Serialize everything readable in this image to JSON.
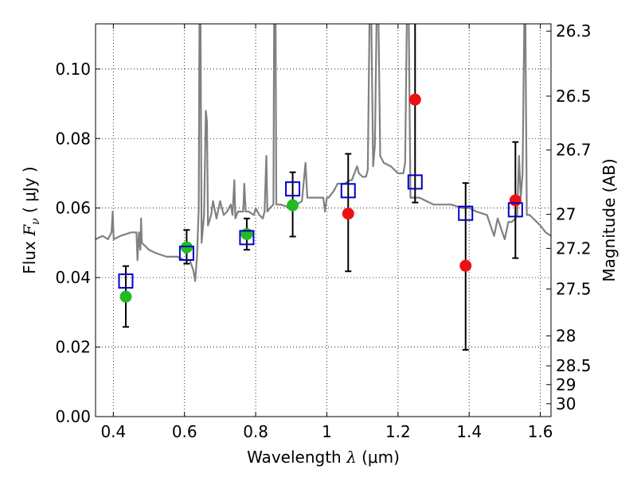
{
  "chart_data": {
    "type": "scatter",
    "xlabel": "Wavelength  λ (μm)",
    "xlabel_parts": {
      "text": "Wavelength  ",
      "symbol": "λ",
      "unit": " (μm)"
    },
    "ylabel": "Flux  Fν  ( μJy )",
    "ylabel_parts": {
      "text": "Flux  ",
      "symbol": "F",
      "subscript": "ν",
      "unit": "  ( μJy )"
    },
    "y2label": "Magnitude (AB)",
    "xlim": [
      0.35,
      1.63
    ],
    "ylim": [
      0.0,
      0.113
    ],
    "grid": true,
    "x_ticks": [
      {
        "value": 0.4,
        "label": "0.4"
      },
      {
        "value": 0.6,
        "label": "0.6"
      },
      {
        "value": 0.8,
        "label": "0.8"
      },
      {
        "value": 1.0,
        "label": "1"
      },
      {
        "value": 1.2,
        "label": "1.2"
      },
      {
        "value": 1.4,
        "label": "1.4"
      },
      {
        "value": 1.6,
        "label": "1.6"
      }
    ],
    "y_ticks": [
      {
        "value": 0.0,
        "label": "0.00"
      },
      {
        "value": 0.02,
        "label": "0.02"
      },
      {
        "value": 0.04,
        "label": "0.04"
      },
      {
        "value": 0.06,
        "label": "0.06"
      },
      {
        "value": 0.08,
        "label": "0.08"
      },
      {
        "value": 0.1,
        "label": "0.10"
      }
    ],
    "y2_ticks": [
      {
        "label": "26.3",
        "flux": 0.1109
      },
      {
        "label": "26.5",
        "flux": 0.0922
      },
      {
        "label": "26.7",
        "flux": 0.0767
      },
      {
        "label": "27",
        "flux": 0.0582
      },
      {
        "label": "27.2",
        "flux": 0.0484
      },
      {
        "label": "27.5",
        "flux": 0.0367
      },
      {
        "label": "28",
        "flux": 0.0232
      },
      {
        "label": "28.5",
        "flux": 0.0146
      },
      {
        "label": "29",
        "flux": 0.0092
      },
      {
        "label": "30",
        "flux": 0.0037
      }
    ],
    "model_spectrum": {
      "color": "#808080",
      "points": [
        [
          0.35,
          0.051
        ],
        [
          0.37,
          0.052
        ],
        [
          0.385,
          0.051
        ],
        [
          0.395,
          0.053
        ],
        [
          0.398,
          0.059
        ],
        [
          0.401,
          0.051
        ],
        [
          0.42,
          0.052
        ],
        [
          0.45,
          0.053
        ],
        [
          0.465,
          0.053
        ],
        [
          0.468,
          0.045
        ],
        [
          0.472,
          0.053
        ],
        [
          0.476,
          0.048
        ],
        [
          0.478,
          0.057
        ],
        [
          0.48,
          0.05
        ],
        [
          0.5,
          0.048
        ],
        [
          0.52,
          0.047
        ],
        [
          0.55,
          0.046
        ],
        [
          0.58,
          0.046
        ],
        [
          0.6,
          0.045
        ],
        [
          0.615,
          0.045
        ],
        [
          0.625,
          0.042
        ],
        [
          0.63,
          0.039
        ],
        [
          0.635,
          0.046
        ],
        [
          0.64,
          0.06
        ],
        [
          0.642,
          0.115
        ],
        [
          0.645,
          0.115
        ],
        [
          0.648,
          0.05
        ],
        [
          0.655,
          0.058
        ],
        [
          0.66,
          0.088
        ],
        [
          0.663,
          0.085
        ],
        [
          0.666,
          0.055
        ],
        [
          0.675,
          0.058
        ],
        [
          0.68,
          0.062
        ],
        [
          0.69,
          0.057
        ],
        [
          0.7,
          0.062
        ],
        [
          0.71,
          0.058
        ],
        [
          0.72,
          0.059
        ],
        [
          0.73,
          0.061
        ],
        [
          0.735,
          0.058
        ],
        [
          0.74,
          0.068
        ],
        [
          0.743,
          0.057
        ],
        [
          0.75,
          0.059
        ],
        [
          0.765,
          0.059
        ],
        [
          0.768,
          0.067
        ],
        [
          0.772,
          0.059
        ],
        [
          0.78,
          0.059
        ],
        [
          0.795,
          0.058
        ],
        [
          0.8,
          0.06
        ],
        [
          0.81,
          0.058
        ],
        [
          0.82,
          0.057
        ],
        [
          0.825,
          0.059
        ],
        [
          0.83,
          0.075
        ],
        [
          0.833,
          0.059
        ],
        [
          0.84,
          0.06
        ],
        [
          0.85,
          0.061
        ],
        [
          0.852,
          0.115
        ],
        [
          0.856,
          0.115
        ],
        [
          0.858,
          0.061
        ],
        [
          0.87,
          0.061
        ],
        [
          0.9,
          0.06
        ],
        [
          0.93,
          0.062
        ],
        [
          0.94,
          0.073
        ],
        [
          0.945,
          0.063
        ],
        [
          0.96,
          0.063
        ],
        [
          0.99,
          0.063
        ],
        [
          0.995,
          0.059
        ],
        [
          1.0,
          0.063
        ],
        [
          1.005,
          0.063
        ],
        [
          1.02,
          0.065
        ],
        [
          1.03,
          0.067
        ],
        [
          1.05,
          0.067
        ],
        [
          1.065,
          0.068
        ],
        [
          1.07,
          0.068
        ],
        [
          1.085,
          0.072
        ],
        [
          1.09,
          0.07
        ],
        [
          1.1,
          0.069
        ],
        [
          1.11,
          0.069
        ],
        [
          1.115,
          0.071
        ],
        [
          1.12,
          0.115
        ],
        [
          1.125,
          0.115
        ],
        [
          1.13,
          0.072
        ],
        [
          1.135,
          0.078
        ],
        [
          1.14,
          0.115
        ],
        [
          1.145,
          0.115
        ],
        [
          1.15,
          0.075
        ],
        [
          1.16,
          0.073
        ],
        [
          1.18,
          0.072
        ],
        [
          1.2,
          0.07
        ],
        [
          1.215,
          0.07
        ],
        [
          1.22,
          0.073
        ],
        [
          1.225,
          0.115
        ],
        [
          1.23,
          0.115
        ],
        [
          1.235,
          0.063
        ],
        [
          1.24,
          0.063
        ],
        [
          1.26,
          0.063
        ],
        [
          1.28,
          0.062
        ],
        [
          1.3,
          0.061
        ],
        [
          1.32,
          0.061
        ],
        [
          1.35,
          0.061
        ],
        [
          1.38,
          0.06
        ],
        [
          1.4,
          0.06
        ],
        [
          1.42,
          0.059
        ],
        [
          1.45,
          0.058
        ],
        [
          1.46,
          0.055
        ],
        [
          1.47,
          0.052
        ],
        [
          1.48,
          0.057
        ],
        [
          1.49,
          0.054
        ],
        [
          1.5,
          0.051
        ],
        [
          1.51,
          0.056
        ],
        [
          1.52,
          0.056
        ],
        [
          1.53,
          0.057
        ],
        [
          1.535,
          0.058
        ],
        [
          1.54,
          0.075
        ],
        [
          1.545,
          0.063
        ],
        [
          1.55,
          0.07
        ],
        [
          1.555,
          0.115
        ],
        [
          1.558,
          0.115
        ],
        [
          1.562,
          0.058
        ],
        [
          1.57,
          0.058
        ],
        [
          1.59,
          0.056
        ],
        [
          1.6,
          0.055
        ],
        [
          1.615,
          0.053
        ],
        [
          1.63,
          0.052
        ]
      ]
    },
    "model_photometry": {
      "color": "#0000cc",
      "marker": "open-square",
      "points": [
        {
          "x": 0.435,
          "y": 0.039
        },
        {
          "x": 0.606,
          "y": 0.047
        },
        {
          "x": 0.775,
          "y": 0.0515
        },
        {
          "x": 0.904,
          "y": 0.0655
        },
        {
          "x": 1.06,
          "y": 0.065
        },
        {
          "x": 1.248,
          "y": 0.0675
        },
        {
          "x": 1.39,
          "y": 0.0585
        },
        {
          "x": 1.53,
          "y": 0.0595
        }
      ]
    },
    "observations": [
      {
        "x": 0.435,
        "y": 0.0345,
        "yerr_low": 0.0258,
        "yerr_high": 0.0433,
        "color": "#22bb22"
      },
      {
        "x": 0.606,
        "y": 0.0487,
        "yerr_low": 0.044,
        "yerr_high": 0.0537,
        "color": "#22bb22"
      },
      {
        "x": 0.775,
        "y": 0.0525,
        "yerr_low": 0.048,
        "yerr_high": 0.057,
        "color": "#22bb22"
      },
      {
        "x": 0.904,
        "y": 0.0608,
        "yerr_low": 0.0518,
        "yerr_high": 0.0703,
        "color": "#22bb22"
      },
      {
        "x": 1.06,
        "y": 0.0584,
        "yerr_low": 0.0418,
        "yerr_high": 0.0756,
        "color": "#ee1111"
      },
      {
        "x": 1.248,
        "y": 0.0912,
        "yerr_low": 0.0616,
        "yerr_high": 0.114,
        "color": "#ee1111"
      },
      {
        "x": 1.39,
        "y": 0.0434,
        "yerr_low": 0.0192,
        "yerr_high": 0.0672,
        "color": "#ee1111"
      },
      {
        "x": 1.53,
        "y": 0.0622,
        "yerr_low": 0.0456,
        "yerr_high": 0.079,
        "color": "#ee1111"
      }
    ]
  }
}
